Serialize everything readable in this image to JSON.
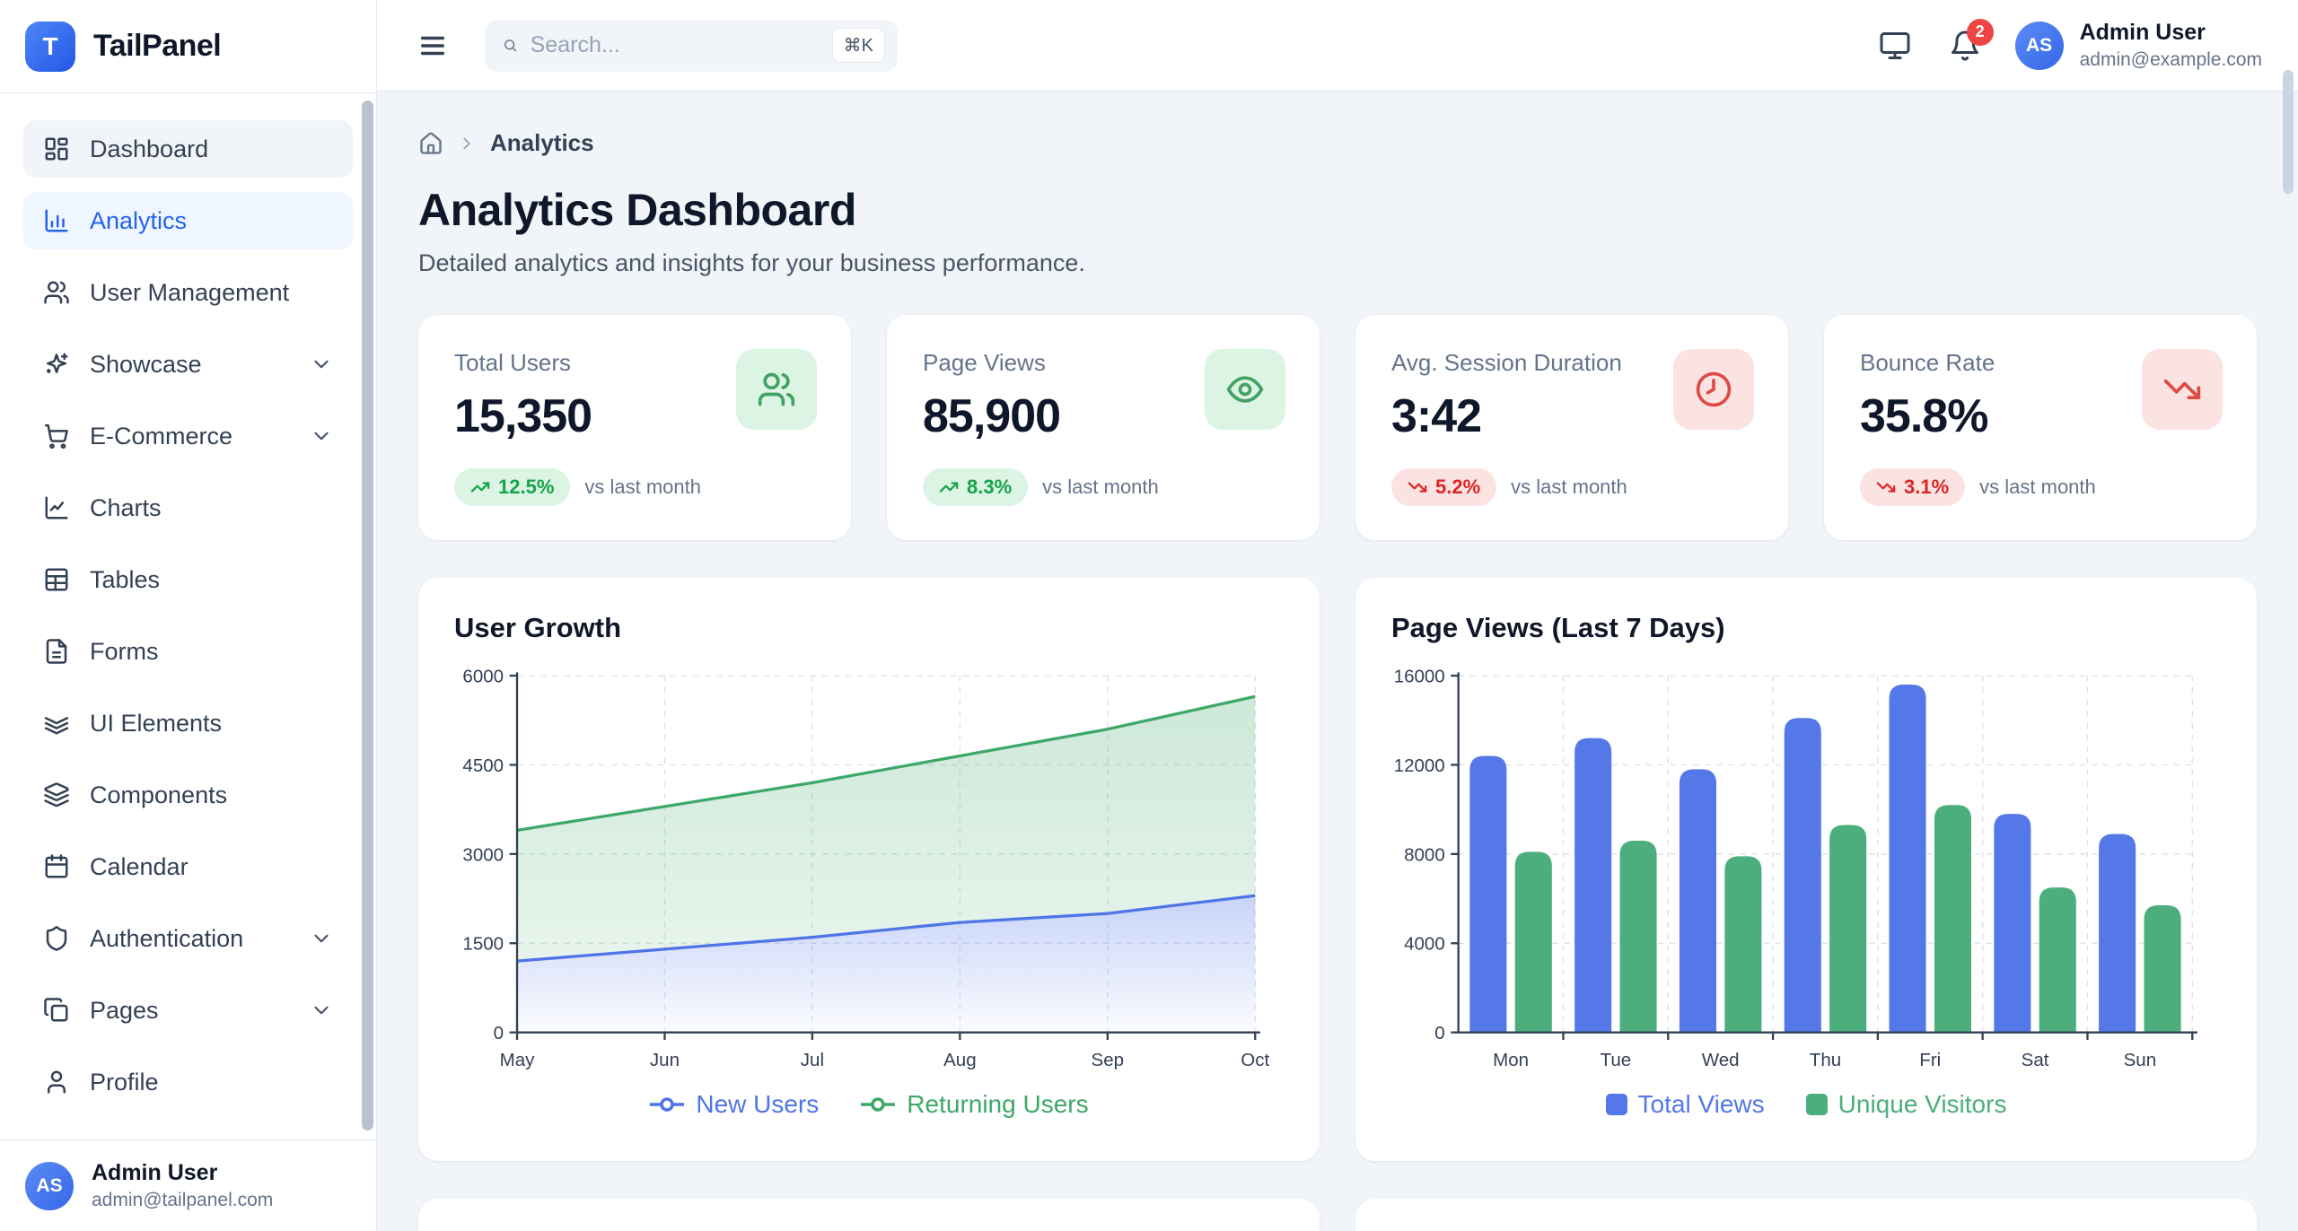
{
  "app": {
    "name": "TailPanel",
    "logo_letter": "T"
  },
  "topbar": {
    "menu_icon": "menu",
    "search": {
      "placeholder": "Search...",
      "shortcut": "⌘K",
      "icon": "search"
    },
    "theme_icon": "monitor",
    "notification_icon": "bell",
    "notifications_count": "2",
    "user": {
      "initials": "AS",
      "name": "Admin User",
      "email": "admin@example.com"
    }
  },
  "sidebar": {
    "items": [
      {
        "label": "Dashboard",
        "icon": "layout-dashboard",
        "variant": "gray",
        "has_children": false
      },
      {
        "label": "Analytics",
        "icon": "chart-column",
        "variant": "active",
        "has_children": false
      },
      {
        "label": "User Management",
        "icon": "users",
        "variant": "default",
        "has_children": false
      },
      {
        "label": "Showcase",
        "icon": "sparkles",
        "variant": "default",
        "has_children": true
      },
      {
        "label": "E-Commerce",
        "icon": "shopping-cart",
        "variant": "default",
        "has_children": true
      },
      {
        "label": "Charts",
        "icon": "chart-line",
        "variant": "default",
        "has_children": false
      },
      {
        "label": "Tables",
        "icon": "table",
        "variant": "default",
        "has_children": false
      },
      {
        "label": "Forms",
        "icon": "file-text",
        "variant": "default",
        "has_children": false
      },
      {
        "label": "UI Elements",
        "icon": "stack",
        "variant": "default",
        "has_children": false
      },
      {
        "label": "Components",
        "icon": "layers",
        "variant": "default",
        "has_children": false
      },
      {
        "label": "Calendar",
        "icon": "calendar",
        "variant": "default",
        "has_children": false
      },
      {
        "label": "Authentication",
        "icon": "shield",
        "variant": "default",
        "has_children": true
      },
      {
        "label": "Pages",
        "icon": "copy",
        "variant": "default",
        "has_children": true
      },
      {
        "label": "Profile",
        "icon": "user",
        "variant": "default",
        "has_children": false
      }
    ],
    "footer": {
      "initials": "AS",
      "name": "Admin User",
      "email": "admin@tailpanel.com"
    }
  },
  "breadcrumb": {
    "home_icon": "home",
    "current": "Analytics"
  },
  "page": {
    "title": "Analytics Dashboard",
    "subtitle": "Detailed analytics and insights for your business performance."
  },
  "stats": [
    {
      "label": "Total Users",
      "value": "15,350",
      "change": "12.5%",
      "direction": "up",
      "compare_text": "vs last month",
      "icon": "users",
      "tone": "green"
    },
    {
      "label": "Page Views",
      "value": "85,900",
      "change": "8.3%",
      "direction": "up",
      "compare_text": "vs last month",
      "icon": "eye",
      "tone": "green"
    },
    {
      "label": "Avg. Session Duration",
      "value": "3:42",
      "change": "5.2%",
      "direction": "down",
      "compare_text": "vs last month",
      "icon": "clock",
      "tone": "red"
    },
    {
      "label": "Bounce Rate",
      "value": "35.8%",
      "change": "3.1%",
      "direction": "down",
      "compare_text": "vs last month",
      "icon": "trending-down",
      "tone": "red"
    }
  ],
  "chart_data": [
    {
      "type": "area",
      "title": "User Growth",
      "x": [
        "May",
        "Jun",
        "Jul",
        "Aug",
        "Sep",
        "Oct"
      ],
      "series": [
        {
          "name": "New Users",
          "color": "#4f74e8",
          "values": [
            1200,
            1400,
            1600,
            1850,
            2000,
            2300
          ]
        },
        {
          "name": "Returning Users",
          "color": "#3da868",
          "values": [
            3400,
            3800,
            4200,
            4650,
            5100,
            5650
          ]
        }
      ],
      "ylim": [
        0,
        6000
      ],
      "yticks": [
        0,
        1500,
        3000,
        4500,
        6000
      ],
      "grid": true,
      "legend_position": "bottom"
    },
    {
      "type": "bar",
      "title": "Page Views (Last 7 Days)",
      "categories": [
        "Mon",
        "Tue",
        "Wed",
        "Thu",
        "Fri",
        "Sat",
        "Sun"
      ],
      "series": [
        {
          "name": "Total Views",
          "color": "#5478e8",
          "values": [
            12400,
            13200,
            11800,
            14100,
            15600,
            9800,
            8900
          ]
        },
        {
          "name": "Unique Visitors",
          "color": "#4cae7c",
          "values": [
            8100,
            8600,
            7900,
            9300,
            10200,
            6500,
            5700
          ]
        }
      ],
      "ylim": [
        0,
        16000
      ],
      "yticks": [
        0,
        4000,
        8000,
        12000,
        16000
      ],
      "grid": true,
      "legend_position": "bottom"
    }
  ],
  "colors": {
    "accent_blue": "#2563eb",
    "green_text": "#16a34a",
    "green_bg": "#dcf4e4",
    "green_icon": "#41a263",
    "red_text": "#dc2626",
    "red_bg": "#fbe3e2",
    "red_icon": "#dc4a43",
    "notification_badge": "#ef4444",
    "axis": "#334155",
    "gridline": "#dde3ea"
  }
}
